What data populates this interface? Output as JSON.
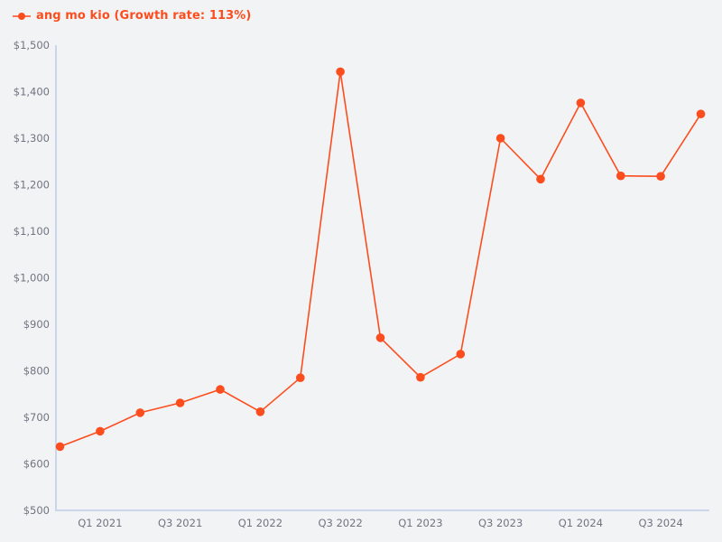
{
  "legend": {
    "label": "ang mo kio (Growth rate: 113%)",
    "series_name": "ang mo kio",
    "growth_rate": "113%"
  },
  "colors": {
    "background": "#f2f3f5",
    "series": "#fb4d1e",
    "axis_line": "#ccd6ea",
    "tick_label": "#6f7480"
  },
  "chart_data": {
    "type": "line",
    "title": "ang mo kio (Growth rate: 113%)",
    "categories": [
      "Q4 2020",
      "Q1 2021",
      "Q2 2021",
      "Q3 2021",
      "Q4 2021",
      "Q1 2022",
      "Q2 2022",
      "Q3 2022",
      "Q4 2022",
      "Q1 2023",
      "Q2 2023",
      "Q3 2023",
      "Q4 2023",
      "Q1 2024",
      "Q2 2024",
      "Q3 2024",
      "Q4 2024"
    ],
    "series": [
      {
        "name": "ang mo kio",
        "values": [
          637,
          670,
          710,
          731,
          760,
          712,
          785,
          1443,
          871,
          786,
          836,
          1300,
          1212,
          1376,
          1219,
          1218,
          1352
        ]
      }
    ],
    "x_axis_visible_ticks": [
      "Q1 2021",
      "Q3 2021",
      "Q1 2022",
      "Q3 2022",
      "Q1 2023",
      "Q3 2023",
      "Q1 2024",
      "Q3 2024"
    ],
    "y_ticks": [
      500,
      600,
      700,
      800,
      900,
      1000,
      1100,
      1200,
      1300,
      1400,
      1500
    ],
    "y_tick_labels": [
      "$500",
      "$600",
      "$700",
      "$800",
      "$900",
      "$1,000",
      "$1,100",
      "$1,200",
      "$1,300",
      "$1,400",
      "$1,500"
    ],
    "ylim": [
      500,
      1500
    ],
    "grid": false,
    "legend_position": "top-left",
    "marker": "circle"
  }
}
